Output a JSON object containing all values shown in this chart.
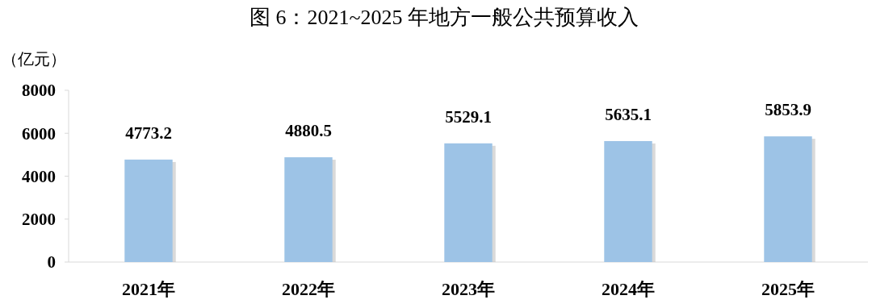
{
  "chart_data": {
    "type": "bar",
    "title": "图 6：2021~2025 年地方一般公共预算收入",
    "ylabel": "（亿元）",
    "categories": [
      "2021年",
      "2022年",
      "2023年",
      "2024年",
      "2025年"
    ],
    "values": [
      4773.2,
      4880.5,
      5529.1,
      5635.1,
      5853.9
    ],
    "color": "#9dc3e6",
    "ylim": [
      0,
      8000
    ],
    "yticks": [
      0,
      2000,
      4000,
      6000,
      8000
    ],
    "data_labels": true,
    "grid": false
  }
}
